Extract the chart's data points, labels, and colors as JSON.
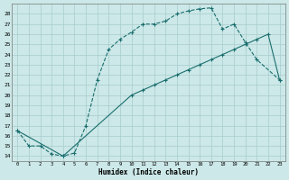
{
  "xlabel": "Humidex (Indice chaleur)",
  "bg_color": "#cce8e8",
  "line_color": "#1a6e6e",
  "grid_color": "#a8cccc",
  "xlim": [
    -0.5,
    23.5
  ],
  "ylim": [
    13.5,
    29.0
  ],
  "xticks": [
    0,
    1,
    2,
    3,
    4,
    5,
    6,
    7,
    8,
    9,
    10,
    11,
    12,
    13,
    14,
    15,
    16,
    17,
    18,
    19,
    20,
    21,
    22,
    23
  ],
  "yticks": [
    14,
    15,
    16,
    17,
    18,
    19,
    20,
    21,
    22,
    23,
    24,
    25,
    26,
    27,
    28
  ],
  "upper_x": [
    0,
    1,
    2,
    3,
    4,
    5,
    6,
    7,
    8,
    9,
    10,
    11,
    12,
    13,
    14,
    15,
    16,
    17,
    18,
    19,
    20,
    21,
    23
  ],
  "upper_y": [
    16.5,
    15.0,
    15.0,
    14.2,
    14.0,
    14.3,
    17.0,
    21.5,
    24.5,
    25.5,
    26.2,
    27.0,
    27.0,
    27.3,
    28.0,
    28.3,
    28.5,
    28.6,
    26.5,
    27.0,
    25.2,
    23.5,
    21.5
  ],
  "lower_x": [
    0,
    4,
    10,
    11,
    12,
    13,
    14,
    15,
    16,
    17,
    18,
    19,
    20,
    21,
    22,
    23
  ],
  "lower_y": [
    16.5,
    14.0,
    20.0,
    20.5,
    21.0,
    21.5,
    22.0,
    22.5,
    23.0,
    23.5,
    24.0,
    24.5,
    25.0,
    25.5,
    26.0,
    21.5
  ]
}
